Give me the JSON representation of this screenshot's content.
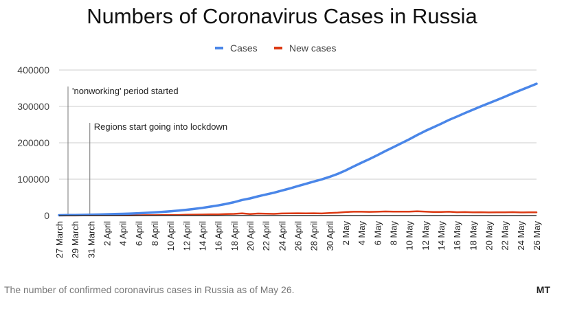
{
  "caption": "The number of confirmed coronavirus cases in Russia as of May 26.",
  "brand": "MT",
  "colors": {
    "cases": "#4a86e8",
    "new_cases": "#dc3912",
    "grid": "#cccccc",
    "axis": "#333333",
    "annotation": "#555555"
  },
  "chart_data": {
    "type": "line",
    "title": "Numbers of Coronavirus Cases in Russia",
    "xlabel": "",
    "ylabel": "",
    "ylim": [
      0,
      400000
    ],
    "yticks": [
      0,
      100000,
      200000,
      300000,
      400000
    ],
    "grid": true,
    "legend_position": "top-center",
    "x": [
      "27 March",
      "28 March",
      "29 March",
      "30 March",
      "31 March",
      "1 April",
      "2 April",
      "3 April",
      "4 April",
      "5 April",
      "6 April",
      "7 April",
      "8 April",
      "9 April",
      "10 April",
      "11 April",
      "12 April",
      "13 April",
      "14 April",
      "15 April",
      "16 April",
      "17 April",
      "18 April",
      "19 April",
      "20 April",
      "21 April",
      "22 April",
      "23 April",
      "24 April",
      "25 April",
      "26 April",
      "27 April",
      "28 April",
      "29 April",
      "30 April",
      "1 May",
      "2 May",
      "3 May",
      "4 May",
      "5 May",
      "6 May",
      "7 May",
      "8 May",
      "9 May",
      "10 May",
      "11 May",
      "12 May",
      "13 May",
      "14 May",
      "15 May",
      "16 May",
      "17 May",
      "18 May",
      "19 May",
      "20 May",
      "21 May",
      "22 May",
      "23 May",
      "24 May",
      "25 May",
      "26 May"
    ],
    "xtick_labels": [
      "27 March",
      "29 March",
      "31 March",
      "2 April",
      "4 April",
      "6 April",
      "8 April",
      "10 April",
      "12 April",
      "14 April",
      "16 April",
      "18 April",
      "20 April",
      "22 April",
      "24 April",
      "26 April",
      "28 April",
      "30 April",
      "2 May",
      "4 May",
      "6 May",
      "8 May",
      "10 May",
      "12 May",
      "14 May",
      "16 May",
      "18 May",
      "20 May",
      "22 May",
      "24 May",
      "26 May"
    ],
    "series": [
      {
        "name": "Cases",
        "values": [
          1036,
          1264,
          1534,
          1836,
          2337,
          2777,
          3548,
          4149,
          4731,
          5389,
          6343,
          7497,
          8672,
          10131,
          11917,
          13584,
          15770,
          18328,
          21102,
          24490,
          27938,
          32008,
          36793,
          42853,
          47121,
          52763,
          57999,
          62773,
          68622,
          74588,
          80949,
          87147,
          93558,
          99399,
          106498,
          114431,
          124054,
          134687,
          145268,
          155370,
          165929,
          177160,
          187859,
          198676,
          209688,
          221344,
          232243,
          242271,
          252245,
          262843,
          272043,
          281752,
          290678,
          299941,
          308705,
          317554,
          326448,
          335882,
          344481,
          353427,
          362342
        ]
      },
      {
        "name": "New cases",
        "values": [
          196,
          228,
          270,
          302,
          501,
          440,
          771,
          601,
          582,
          658,
          954,
          1154,
          1175,
          1459,
          1786,
          1667,
          2186,
          2558,
          2774,
          3388,
          3448,
          4070,
          4785,
          6060,
          4268,
          5642,
          5236,
          4774,
          5849,
          5966,
          6361,
          6198,
          6411,
          5841,
          7099,
          7933,
          9623,
          10633,
          10581,
          10102,
          10559,
          11231,
          10699,
          10817,
          11012,
          11656,
          10899,
          10028,
          9974,
          10598,
          9200,
          9709,
          8926,
          9263,
          8764,
          8849,
          8894,
          9434,
          8599,
          8946,
          8915
        ]
      }
    ],
    "annotations": [
      {
        "x": "27 March",
        "text": "'nonworking' period started"
      },
      {
        "x": "30 March",
        "text": "Regions start going into lockdown"
      }
    ]
  }
}
